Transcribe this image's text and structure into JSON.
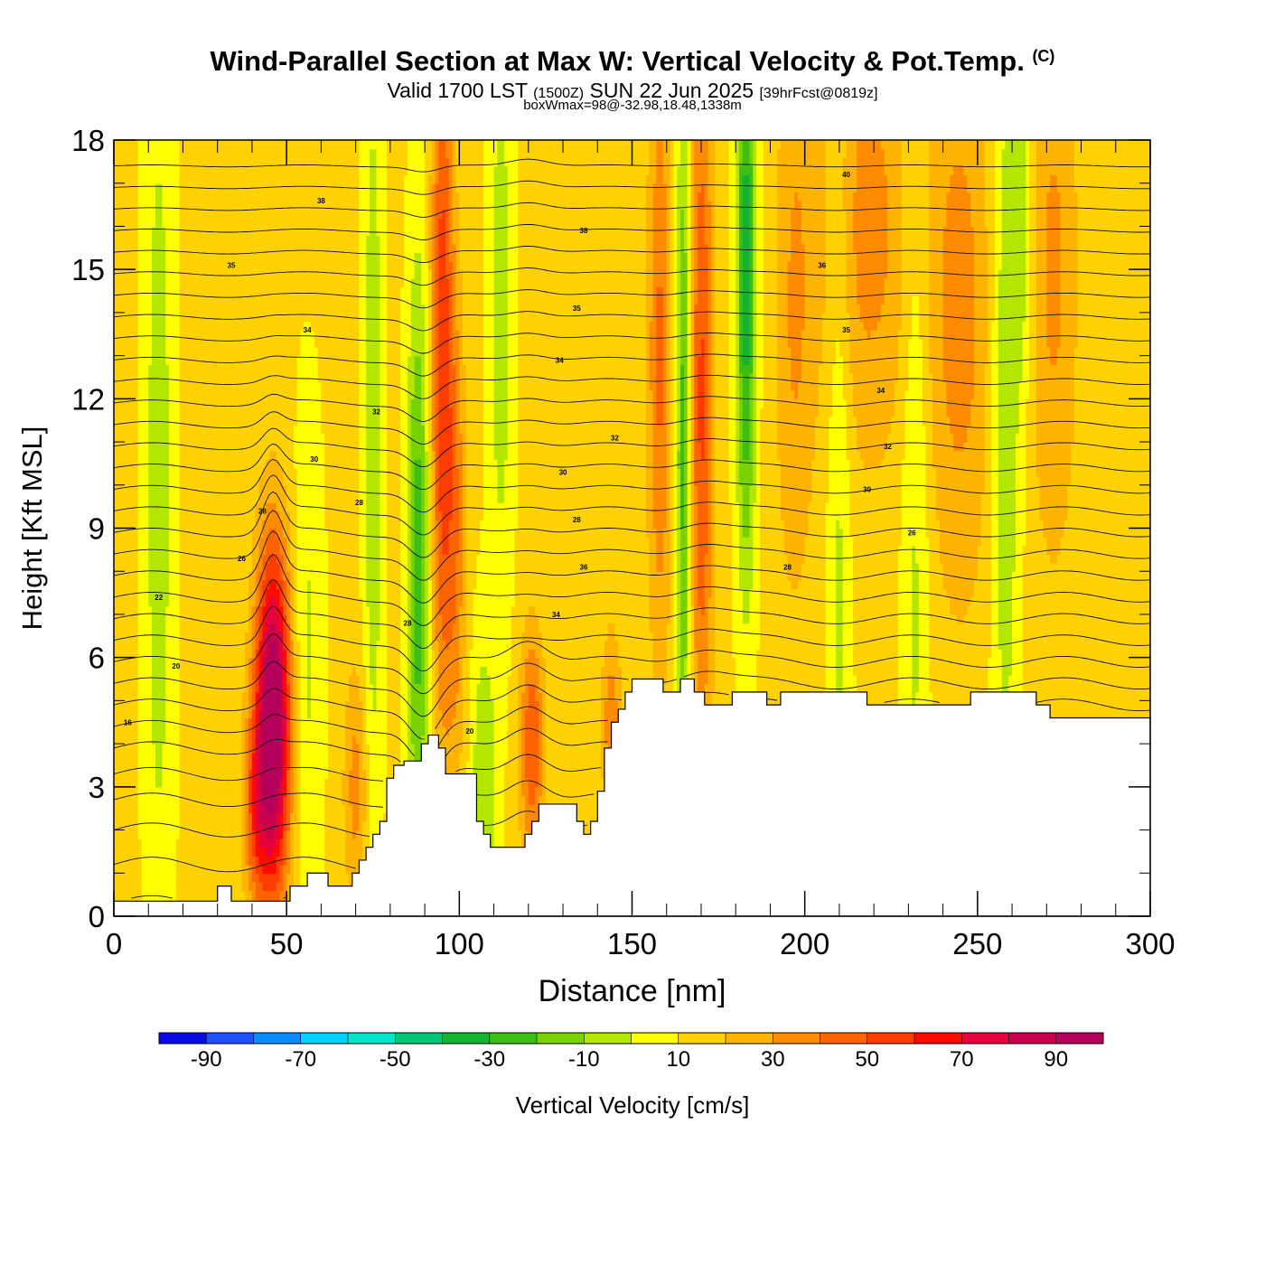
{
  "header": {
    "title": "Wind-Parallel Section at Max W: Vertical Velocity & Pot.Temp.",
    "copyright": "(C)",
    "valid_prefix": "Valid 1700 LST",
    "valid_utc": "(1500Z)",
    "valid_date": "SUN 22 Jun 2025",
    "forecast": "[39hrFcst@0819z]",
    "box_info": "boxWmax=98@-32.98,18.48,1338m"
  },
  "colorbar": {
    "label": "Vertical Velocity [cm/s]",
    "tick_labels": [
      "-90",
      "-70",
      "-50",
      "-30",
      "-10",
      "10",
      "30",
      "50",
      "70",
      "90"
    ],
    "colors": [
      "#0a0ae6",
      "#1e50ff",
      "#0a8cff",
      "#00d2ff",
      "#00e6c8",
      "#00c878",
      "#14b432",
      "#3cbe14",
      "#78d200",
      "#b4e600",
      "#ffff00",
      "#ffd200",
      "#ffb400",
      "#ff8c00",
      "#ff6400",
      "#ff3c00",
      "#ff0a00",
      "#e6003c",
      "#c8004b",
      "#b4005a"
    ]
  },
  "chart_data": {
    "type": "heatmap",
    "title": "Wind-Parallel Section at Max W: Vertical Velocity & Pot.Temp.",
    "xlabel": "Distance [nm]",
    "ylabel": "Height [Kft MSL]",
    "xlim": [
      0,
      300
    ],
    "ylim": [
      0,
      18
    ],
    "x_ticks": [
      0,
      50,
      100,
      150,
      200,
      250,
      300
    ],
    "y_ticks": [
      0,
      3,
      6,
      9,
      12,
      15,
      18
    ],
    "field": "Vertical Velocity [cm/s]",
    "field_range": [
      -100,
      100
    ],
    "contour_field": "Pot.Temp.",
    "max_w_cm_s": 98,
    "background_w": 12,
    "updrafts": [
      {
        "x": 46,
        "width": 3.5,
        "z_center": 4.5,
        "z_spread": 2.8,
        "w": 98
      },
      {
        "x": 41,
        "width": 2.5,
        "z_center": 2.5,
        "z_spread": 1.6,
        "w": 30
      },
      {
        "x": 70,
        "width": 2.5,
        "z_center": 3.0,
        "z_spread": 2.0,
        "w": 22
      },
      {
        "x": 95,
        "width": 2.2,
        "z_center": 13.0,
        "z_spread": 6.0,
        "w": 45
      },
      {
        "x": 99,
        "width": 2.0,
        "z_center": 9.0,
        "z_spread": 4.0,
        "w": 25
      },
      {
        "x": 121,
        "width": 2.5,
        "z_center": 4.0,
        "z_spread": 1.8,
        "w": 38
      },
      {
        "x": 144,
        "width": 2.0,
        "z_center": 4.5,
        "z_spread": 1.5,
        "w": 25
      },
      {
        "x": 158,
        "width": 2.5,
        "z_center": 13.0,
        "z_spread": 5.0,
        "w": 30
      },
      {
        "x": 170,
        "width": 2.5,
        "z_center": 12.0,
        "z_spread": 6.0,
        "w": 40
      },
      {
        "x": 197,
        "width": 4.0,
        "z_center": 14.0,
        "z_spread": 5.0,
        "w": 18
      },
      {
        "x": 218,
        "width": 10.0,
        "z_center": 16.0,
        "z_spread": 4.0,
        "w": 22
      },
      {
        "x": 245,
        "width": 7.0,
        "z_center": 14.0,
        "z_spread": 5.0,
        "w": 22
      },
      {
        "x": 272,
        "width": 5.0,
        "z_center": 15.0,
        "z_spread": 5.0,
        "w": 20
      }
    ],
    "downdrafts": [
      {
        "x": 13,
        "width": 3.0,
        "z_center": 10.0,
        "z_spread": 8.0,
        "w": -18
      },
      {
        "x": 56,
        "width": 3.0,
        "z_center": 6.0,
        "z_spread": 4.0,
        "w": -14
      },
      {
        "x": 75,
        "width": 2.0,
        "z_center": 11.0,
        "z_spread": 7.0,
        "w": -20
      },
      {
        "x": 88,
        "width": 2.2,
        "z_center": 8.0,
        "z_spread": 5.0,
        "w": -38
      },
      {
        "x": 107,
        "width": 2.5,
        "z_center": 3.0,
        "z_spread": 2.5,
        "w": -22
      },
      {
        "x": 112,
        "width": 2.5,
        "z_center": 14.0,
        "z_spread": 5.0,
        "w": -18
      },
      {
        "x": 165,
        "width": 1.6,
        "z_center": 11.0,
        "z_spread": 6.0,
        "w": -40
      },
      {
        "x": 183,
        "width": 2.0,
        "z_center": 15.0,
        "z_spread": 5.0,
        "w": -48
      },
      {
        "x": 210,
        "width": 2.5,
        "z_center": 10.0,
        "z_spread": 8.0,
        "w": -16
      },
      {
        "x": 232,
        "width": 3.0,
        "z_center": 10.0,
        "z_spread": 8.0,
        "w": -16
      },
      {
        "x": 258,
        "width": 3.0,
        "z_center": 12.0,
        "z_spread": 7.0,
        "w": -22
      },
      {
        "x": 263,
        "width": 2.0,
        "z_center": 16.0,
        "z_spread": 3.0,
        "w": -18
      }
    ],
    "terrain": [
      [
        0,
        0.35
      ],
      [
        30,
        0.35
      ],
      [
        30,
        0.7
      ],
      [
        34,
        0.7
      ],
      [
        34,
        0.35
      ],
      [
        51,
        0.35
      ],
      [
        51,
        0.7
      ],
      [
        56,
        0.7
      ],
      [
        56,
        1.0
      ],
      [
        62,
        1.0
      ],
      [
        62,
        0.7
      ],
      [
        69,
        0.7
      ],
      [
        69,
        1.0
      ],
      [
        71,
        1.0
      ],
      [
        71,
        1.3
      ],
      [
        73,
        1.3
      ],
      [
        73,
        1.6
      ],
      [
        75,
        1.6
      ],
      [
        75,
        1.9
      ],
      [
        77,
        1.9
      ],
      [
        77,
        2.2
      ],
      [
        79,
        2.2
      ],
      [
        79,
        3.2
      ],
      [
        81,
        3.2
      ],
      [
        81,
        3.5
      ],
      [
        84,
        3.5
      ],
      [
        84,
        3.6
      ],
      [
        89,
        3.6
      ],
      [
        89,
        4.0
      ],
      [
        91,
        4.0
      ],
      [
        91,
        4.2
      ],
      [
        94,
        4.2
      ],
      [
        94,
        3.9
      ],
      [
        96,
        3.9
      ],
      [
        96,
        3.3
      ],
      [
        105,
        3.3
      ],
      [
        105,
        2.2
      ],
      [
        107,
        2.2
      ],
      [
        107,
        1.9
      ],
      [
        109,
        1.9
      ],
      [
        109,
        1.6
      ],
      [
        119,
        1.6
      ],
      [
        119,
        1.9
      ],
      [
        121,
        1.9
      ],
      [
        121,
        2.2
      ],
      [
        123,
        2.2
      ],
      [
        123,
        2.6
      ],
      [
        134,
        2.6
      ],
      [
        134,
        2.2
      ],
      [
        136,
        2.2
      ],
      [
        136,
        1.9
      ],
      [
        138,
        1.9
      ],
      [
        138,
        2.2
      ],
      [
        140,
        2.2
      ],
      [
        140,
        2.9
      ],
      [
        142,
        2.9
      ],
      [
        142,
        3.9
      ],
      [
        144,
        3.9
      ],
      [
        144,
        4.5
      ],
      [
        146,
        4.5
      ],
      [
        146,
        4.8
      ],
      [
        148,
        4.8
      ],
      [
        148,
        5.2
      ],
      [
        150,
        5.2
      ],
      [
        150,
        5.5
      ],
      [
        159,
        5.5
      ],
      [
        159,
        5.2
      ],
      [
        164,
        5.2
      ],
      [
        164,
        5.5
      ],
      [
        168,
        5.5
      ],
      [
        168,
        5.2
      ],
      [
        171,
        5.2
      ],
      [
        171,
        4.9
      ],
      [
        179,
        4.9
      ],
      [
        179,
        5.2
      ],
      [
        189,
        5.2
      ],
      [
        189,
        4.9
      ],
      [
        193,
        4.9
      ],
      [
        193,
        5.2
      ],
      [
        218,
        5.2
      ],
      [
        218,
        4.9
      ],
      [
        248,
        4.9
      ],
      [
        248,
        5.2
      ],
      [
        267,
        5.2
      ],
      [
        267,
        4.9
      ],
      [
        271,
        4.9
      ],
      [
        271,
        4.6
      ],
      [
        300,
        4.6
      ]
    ],
    "theta_contours": {
      "base_z": [
        0.3,
        1.2,
        2.0,
        2.7,
        3.3,
        3.9,
        4.4,
        4.9,
        5.4,
        5.9,
        6.4,
        6.9,
        7.4,
        7.9,
        8.4,
        8.9,
        9.4,
        9.9,
        10.4,
        10.9,
        11.4,
        11.9,
        12.4,
        12.9,
        13.4,
        13.9,
        14.4,
        14.9,
        15.4,
        15.9,
        16.4,
        16.9,
        17.4
      ],
      "labels": [
        {
          "text": "16",
          "x": 4,
          "z": 4.5
        },
        {
          "text": "20",
          "x": 18,
          "z": 5.8
        },
        {
          "text": "22",
          "x": 13,
          "z": 7.4
        },
        {
          "text": "26",
          "x": 37,
          "z": 8.3
        },
        {
          "text": "28",
          "x": 43,
          "z": 9.4
        },
        {
          "text": "28",
          "x": 71,
          "z": 9.6
        },
        {
          "text": "30",
          "x": 58,
          "z": 10.6
        },
        {
          "text": "32",
          "x": 76,
          "z": 11.7
        },
        {
          "text": "34",
          "x": 56,
          "z": 13.6
        },
        {
          "text": "35",
          "x": 34,
          "z": 15.1
        },
        {
          "text": "38",
          "x": 60,
          "z": 16.6
        },
        {
          "text": "28",
          "x": 85,
          "z": 6.8
        },
        {
          "text": "20",
          "x": 103,
          "z": 4.3
        },
        {
          "text": "34",
          "x": 128,
          "z": 7.0
        },
        {
          "text": "36",
          "x": 136,
          "z": 8.1
        },
        {
          "text": "28",
          "x": 134,
          "z": 9.2
        },
        {
          "text": "30",
          "x": 130,
          "z": 10.3
        },
        {
          "text": "32",
          "x": 145,
          "z": 11.1
        },
        {
          "text": "34",
          "x": 129,
          "z": 12.9
        },
        {
          "text": "35",
          "x": 134,
          "z": 14.1
        },
        {
          "text": "38",
          "x": 136,
          "z": 15.9
        },
        {
          "text": "28",
          "x": 195,
          "z": 8.1
        },
        {
          "text": "26",
          "x": 231,
          "z": 8.9
        },
        {
          "text": "30",
          "x": 218,
          "z": 9.9
        },
        {
          "text": "32",
          "x": 224,
          "z": 10.9
        },
        {
          "text": "34",
          "x": 222,
          "z": 12.2
        },
        {
          "text": "35",
          "x": 212,
          "z": 13.6
        },
        {
          "text": "36",
          "x": 205,
          "z": 15.1
        },
        {
          "text": "40",
          "x": 212,
          "z": 17.2
        }
      ]
    }
  }
}
